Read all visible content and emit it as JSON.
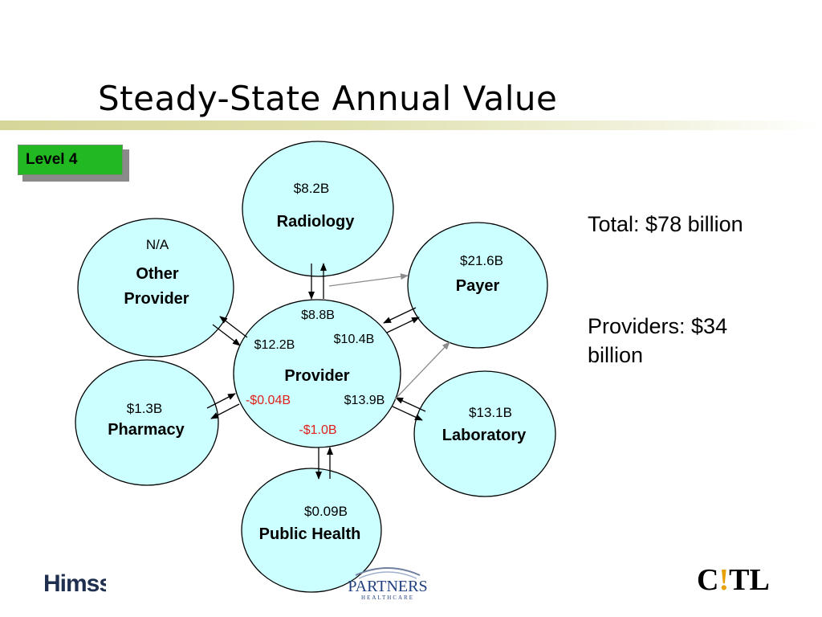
{
  "slide": {
    "title": "Steady-State Annual Value",
    "level_badge": "Level 4",
    "summary_total": "Total: $78 billion",
    "summary_providers_line1": "Providers: $34",
    "summary_providers_line2": "billion"
  },
  "nodes": {
    "radiology": {
      "value": "$8.2B",
      "label": "Radiology"
    },
    "other_provider": {
      "value": "N/A",
      "label_line1": "Other",
      "label_line2": "Provider"
    },
    "payer": {
      "value": "$21.6B",
      "label": "Payer"
    },
    "provider": {
      "label": "Provider"
    },
    "pharmacy": {
      "value": "$1.3B",
      "label": "Pharmacy"
    },
    "laboratory": {
      "value": "$13.1B",
      "label": "Laboratory"
    },
    "public_health": {
      "value": "$0.09B",
      "label": "Public Health"
    }
  },
  "flows": {
    "radiology_provider": "$8.8B",
    "other_provider_provider": "$12.2B",
    "payer_provider": "$10.4B",
    "pharmacy_provider": "-$0.04B",
    "laboratory_provider": "$13.9B",
    "public_health_provider": "-$1.0B"
  },
  "colors": {
    "node_fill": "#ccffff",
    "negative_flow": "#e0201a",
    "level_badge": "#21b821",
    "title_bar": "#d6d69a"
  },
  "logos": {
    "himss": "Himss",
    "partners": "PARTNERS",
    "partners_sub": "HEALTHCARE",
    "ctl_c": "C",
    "ctl_bang": "!",
    "ctl_tl": "TL"
  }
}
